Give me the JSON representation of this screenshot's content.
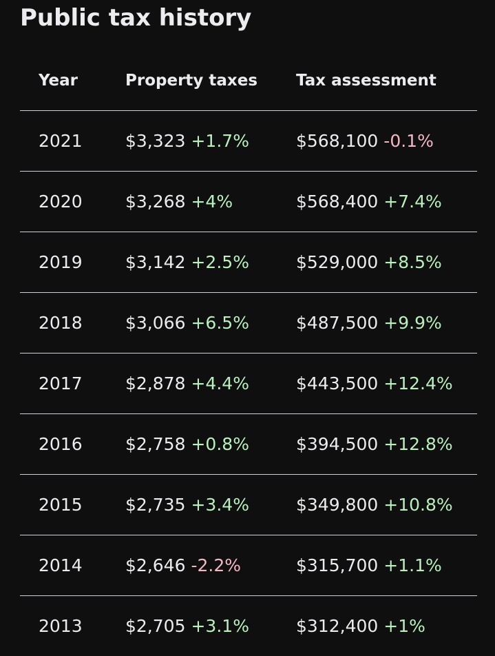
{
  "title": "Public tax history",
  "columns": {
    "year": "Year",
    "property_taxes": "Property taxes",
    "tax_assessment": "Tax assessment"
  },
  "colors": {
    "increase": "#b9f0bd",
    "decrease": "#f3b8c2",
    "text": "#ececf0",
    "background": "#0f0f10"
  },
  "rows": [
    {
      "year": "2021",
      "tax": "$3,323",
      "tax_change": "+1.7%",
      "tax_dir": "up",
      "assessment": "$568,100",
      "assessment_change": "-0.1%",
      "assessment_dir": "down"
    },
    {
      "year": "2020",
      "tax": "$3,268",
      "tax_change": "+4%",
      "tax_dir": "up",
      "assessment": "$568,400",
      "assessment_change": "+7.4%",
      "assessment_dir": "up"
    },
    {
      "year": "2019",
      "tax": "$3,142",
      "tax_change": "+2.5%",
      "tax_dir": "up",
      "assessment": "$529,000",
      "assessment_change": "+8.5%",
      "assessment_dir": "up"
    },
    {
      "year": "2018",
      "tax": "$3,066",
      "tax_change": "+6.5%",
      "tax_dir": "up",
      "assessment": "$487,500",
      "assessment_change": "+9.9%",
      "assessment_dir": "up"
    },
    {
      "year": "2017",
      "tax": "$2,878",
      "tax_change": "+4.4%",
      "tax_dir": "up",
      "assessment": "$443,500",
      "assessment_change": "+12.4%",
      "assessment_dir": "up"
    },
    {
      "year": "2016",
      "tax": "$2,758",
      "tax_change": "+0.8%",
      "tax_dir": "up",
      "assessment": "$394,500",
      "assessment_change": "+12.8%",
      "assessment_dir": "up"
    },
    {
      "year": "2015",
      "tax": "$2,735",
      "tax_change": "+3.4%",
      "tax_dir": "up",
      "assessment": "$349,800",
      "assessment_change": "+10.8%",
      "assessment_dir": "up"
    },
    {
      "year": "2014",
      "tax": "$2,646",
      "tax_change": "-2.2%",
      "tax_dir": "down",
      "assessment": "$315,700",
      "assessment_change": "+1.1%",
      "assessment_dir": "up"
    },
    {
      "year": "2013",
      "tax": "$2,705",
      "tax_change": "+3.1%",
      "tax_dir": "up",
      "assessment": "$312,400",
      "assessment_change": "+1%",
      "assessment_dir": "up"
    }
  ]
}
